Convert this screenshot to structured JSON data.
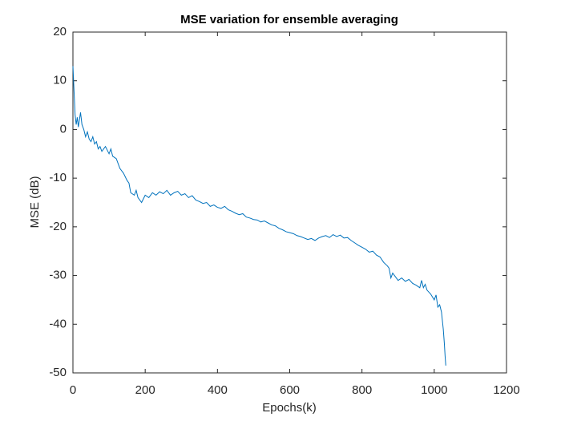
{
  "chart_data": {
    "type": "line",
    "title": "MSE variation for ensemble averaging",
    "x_label": "Epochs(k)",
    "y_label": "MSE (dB)",
    "xlim": [
      0,
      1200
    ],
    "xticks": [
      0,
      200,
      400,
      600,
      800,
      1000,
      1200
    ],
    "ylim": [
      -50,
      20
    ],
    "yticks": [
      -50,
      -40,
      -30,
      -20,
      -10,
      0,
      10,
      20
    ],
    "grid": false,
    "series": [
      {
        "color": "#0072bd",
        "x": [
          0,
          3,
          6,
          9,
          12,
          15,
          18,
          21,
          25,
          30,
          35,
          40,
          45,
          50,
          55,
          60,
          65,
          70,
          75,
          80,
          90,
          100,
          105,
          110,
          120,
          130,
          140,
          150,
          155,
          160,
          170,
          175,
          180,
          190,
          200,
          210,
          220,
          230,
          240,
          250,
          260,
          270,
          280,
          290,
          300,
          310,
          320,
          330,
          340,
          350,
          360,
          370,
          380,
          390,
          400,
          410,
          420,
          430,
          440,
          450,
          460,
          470,
          480,
          490,
          500,
          510,
          520,
          530,
          540,
          550,
          560,
          570,
          580,
          590,
          600,
          610,
          620,
          630,
          640,
          650,
          660,
          670,
          680,
          690,
          700,
          710,
          720,
          730,
          740,
          750,
          760,
          770,
          780,
          790,
          800,
          810,
          820,
          830,
          840,
          850,
          860,
          870,
          875,
          880,
          885,
          890,
          900,
          910,
          920,
          930,
          940,
          950,
          960,
          965,
          970,
          975,
          980,
          990,
          1000,
          1005,
          1010,
          1015,
          1020,
          1025,
          1028,
          1030,
          1032
        ],
        "values": [
          13,
          8,
          3,
          1,
          2.5,
          0.5,
          2,
          3.5,
          1,
          0,
          -1.5,
          -0.5,
          -2,
          -2.5,
          -1.5,
          -3,
          -2.5,
          -4,
          -3.5,
          -4.5,
          -3.5,
          -5,
          -4,
          -5.5,
          -6,
          -8,
          -9,
          -10.5,
          -11,
          -13,
          -13.5,
          -12.5,
          -14,
          -15,
          -13.5,
          -14,
          -13,
          -13.5,
          -12.8,
          -13.2,
          -12.5,
          -13.5,
          -13,
          -12.7,
          -13.5,
          -13.2,
          -14,
          -13.6,
          -14.5,
          -14.8,
          -15.2,
          -15,
          -15.8,
          -15.5,
          -16,
          -16.2,
          -15.8,
          -16.5,
          -16.8,
          -17.2,
          -17.5,
          -17.3,
          -18,
          -18.2,
          -18.5,
          -18.6,
          -19,
          -18.8,
          -19.2,
          -19.6,
          -19.8,
          -20.3,
          -20.6,
          -21,
          -21.2,
          -21.4,
          -21.8,
          -22,
          -22.3,
          -22.6,
          -22.4,
          -22.8,
          -22.3,
          -22,
          -21.8,
          -22.2,
          -21.6,
          -22,
          -21.7,
          -22.3,
          -22.2,
          -22.8,
          -23.3,
          -23.8,
          -24.2,
          -24.6,
          -25.2,
          -25,
          -25.8,
          -26.2,
          -27.3,
          -28,
          -28.5,
          -30.5,
          -29.5,
          -30,
          -31,
          -30.5,
          -31.2,
          -30.8,
          -31.6,
          -32,
          -32.5,
          -31,
          -32.5,
          -31.8,
          -33,
          -33.8,
          -35,
          -34,
          -36.5,
          -36,
          -37.5,
          -41,
          -44,
          -46.5,
          -48.5
        ]
      }
    ]
  }
}
